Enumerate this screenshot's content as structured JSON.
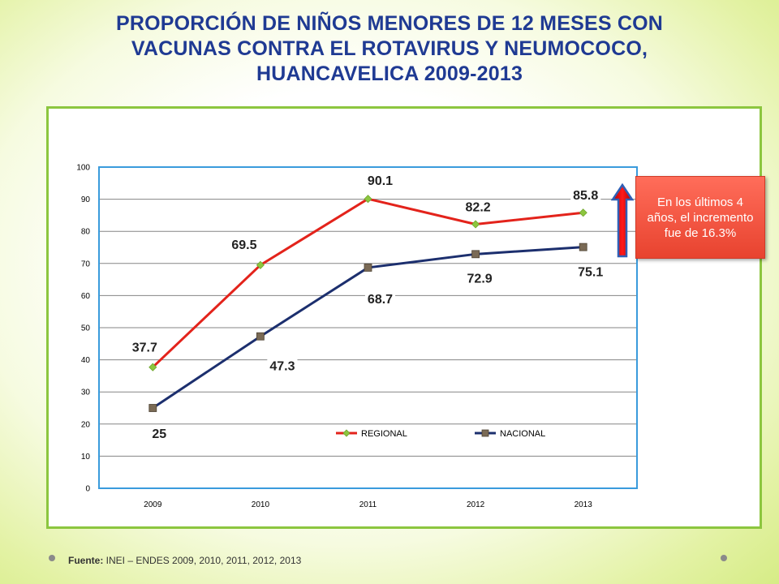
{
  "title_lines": [
    "PROPORCIÓN DE NIÑOS MENORES DE 12 MESES CON",
    "VACUNAS CONTRA EL ROTAVIRUS Y NEUMOCOCO,",
    "HUANCAVELICA  2009-2013"
  ],
  "callout_text": "En los últimos 4 años,  el incremento fue de 16.3%",
  "source": {
    "label": "Fuente:",
    "text": " INEI – ENDES  2009, 2010, 2011, 2012, 2013"
  },
  "colors": {
    "regional": "#e3231b",
    "nacional": "#1c2f6e",
    "regional_marker": "#8dc63f",
    "nacional_marker": "#7a6a55",
    "plot_border": "#3a9bdc",
    "title": "#1f3a93"
  },
  "chart_data": {
    "type": "line",
    "categories": [
      "2009",
      "2010",
      "2011",
      "2012",
      "2013"
    ],
    "series": [
      {
        "name": "REGIONAL",
        "values": [
          37.7,
          69.5,
          90.1,
          82.2,
          85.8
        ],
        "labels": [
          "37.7",
          "69.5",
          "90.1",
          "82.2",
          "85.8"
        ]
      },
      {
        "name": "NACIONAL",
        "values": [
          25,
          47.3,
          68.7,
          72.9,
          75.1
        ],
        "labels": [
          "25",
          "47.3",
          "68.7",
          "72.9",
          "75.1"
        ]
      }
    ],
    "ylim": [
      0,
      100
    ],
    "yticks": [
      "0",
      "10",
      "20",
      "30",
      "40",
      "50",
      "60",
      "70",
      "80",
      "90",
      "100"
    ],
    "grid": true,
    "legend_position": "lower-right inside plot"
  }
}
